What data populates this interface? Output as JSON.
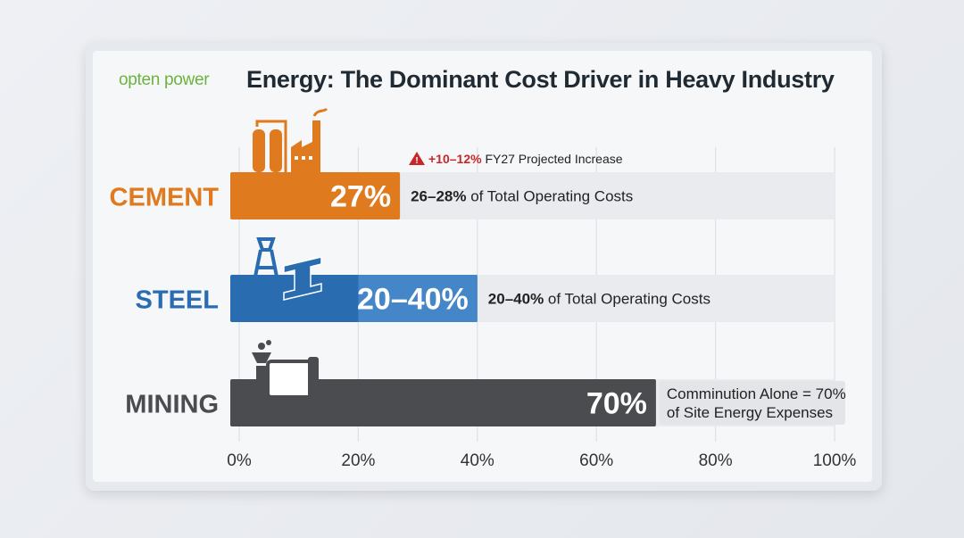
{
  "logo": "opten power",
  "title": "Energy: The Dominant Cost Driver in Heavy Industry",
  "chart_data": {
    "type": "bar",
    "orientation": "horizontal",
    "title": "Energy: The Dominant Cost Driver in Heavy Industry",
    "categories": [
      "CEMENT",
      "STEEL",
      "MINING"
    ],
    "values": [
      27,
      40,
      70
    ],
    "range_start": [
      0,
      20,
      0
    ],
    "value_labels": [
      "27%",
      "20–40%",
      "70%"
    ],
    "notes": [
      {
        "bold": "26–28%",
        "text": " of Total Operating Costs"
      },
      {
        "bold": "20–40%",
        "text": " of Total Operating Costs"
      },
      {
        "bold": "",
        "text": "Comminution Alone = 70%",
        "text2": "of Site Energy Expenses"
      }
    ],
    "annotation": {
      "icon": "warning-icon",
      "highlight": "+10–12%",
      "text": " FY27 Projected Increase",
      "color": "#c62828"
    },
    "colors": [
      "#e07a1f",
      "#2a6cb0",
      "#4a4c4f"
    ],
    "xlim": [
      0,
      100
    ],
    "xticks": [
      "0%",
      "20%",
      "40%",
      "60%",
      "80%",
      "100%"
    ],
    "grid": true
  }
}
